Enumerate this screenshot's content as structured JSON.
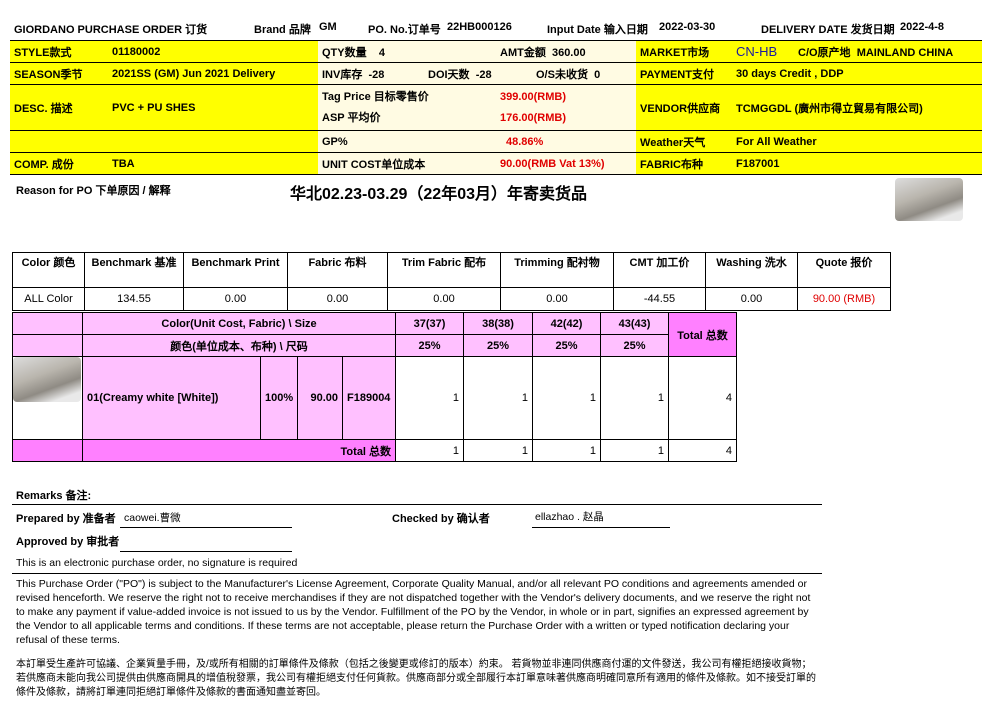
{
  "header": {
    "title": "GIORDANO PURCHASE ORDER 订货",
    "brand_label": "Brand 品牌",
    "brand": "GM",
    "po_label": "PO. No.订单号",
    "po": "22HB000126",
    "input_label": "Input Date 输入日期",
    "input_date": "2022-03-30",
    "delivery_label": "DELIVERY DATE 发货日期",
    "delivery_date": "2022-4-8"
  },
  "info": {
    "style_label": "STYLE款式",
    "style": "01180002",
    "season_label": "SEASON季节",
    "season": "2021SS (GM) Jun 2021 Delivery",
    "desc_label": "DESC. 描述",
    "desc": "PVC + PU SHES",
    "comp_label": "COMP. 成份",
    "comp": "TBA",
    "qty_label": "QTY数量",
    "qty": "4",
    "amt_label": "AMT金额",
    "amt": "360.00",
    "inv_label": "INV库存",
    "inv": "-28",
    "doi_label": "DOI天数",
    "doi": "-28",
    "os_label": "O/S未收货",
    "os": "0",
    "tag_label": "Tag Price 目标零售价",
    "tag": "399.00(RMB)",
    "asp_label": "ASP 平均价",
    "asp": "176.00(RMB)",
    "gp_label": "GP%",
    "gp": "48.86%",
    "unit_label": "UNIT COST单位成本",
    "unit": "90.00(RMB Vat 13%)",
    "market_label": "MARKET市场",
    "market": "CN-HB",
    "co_label": "C/O原产地",
    "co": "MAINLAND CHINA",
    "payment_label": "PAYMENT支付",
    "payment": "30 days Credit , DDP",
    "vendor_label": "VENDOR供应商",
    "vendor": "TCMGGDL (廣州市得立貿易有限公司)",
    "weather_label": "Weather天气",
    "weather": "For All Weather",
    "fabric_label": "FABRIC布种",
    "fabric": "F187001"
  },
  "reason": {
    "label": "Reason for PO 下单原因 / 解释",
    "text": "华北02.23-03.29（22年03月）年寄卖货品"
  },
  "benchmark": {
    "headers": [
      "Color 颜色",
      "Benchmark 基准",
      "Benchmark Print",
      "Fabric 布料",
      "Trim Fabric 配布",
      "Trimming 配衬物",
      "CMT 加工价",
      "Washing 洗水",
      "Quote 报价"
    ],
    "values": [
      "ALL Color",
      "134.55",
      "0.00",
      "0.00",
      "0.00",
      "0.00",
      "-44.55",
      "0.00",
      "90.00 (RMB)"
    ]
  },
  "sizes": {
    "header_en": "Color(Unit Cost, Fabric) \\ Size",
    "header_cn": "颜色(单位成本、布种) \\ 尺码",
    "total_label": "Total 总数",
    "sizes": [
      {
        "name": "37(37)",
        "ratio": "25%"
      },
      {
        "name": "38(38)",
        "ratio": "25%"
      },
      {
        "name": "42(42)",
        "ratio": "25%"
      },
      {
        "name": "43(43)",
        "ratio": "25%"
      }
    ],
    "row": {
      "color": "01(Creamy white [White])",
      "pct": "100%",
      "cost": "90.00",
      "fabric": "F189004",
      "qty": [
        "1",
        "1",
        "1",
        "1"
      ],
      "total": "4"
    },
    "totals": {
      "label": "Total 总数",
      "qty": [
        "1",
        "1",
        "1",
        "1"
      ],
      "total": "4"
    }
  },
  "signoff": {
    "remarks_label": "Remarks 备注:",
    "prepared_label": "Prepared by 准备者",
    "prepared": "caowei.曹微",
    "checked_label": "Checked by 确认者",
    "checked": "ellazhao . 赵晶",
    "approved_label": "Approved by 审批者",
    "electronic": "This is an electronic purchase order, no signature is required"
  },
  "terms": {
    "en": "This Purchase Order (\"PO\") is subject to the Manufacturer's License Agreement, Corporate Quality Manual, and/or all relevant PO conditions and agreements amended or revised henceforth. We reserve the right not to receive merchandises if they are not dispatched together with the Vendor's delivery documents, and we reserve the right not to make any payment if value-added invoice is not issued to us by the Vendor. Fulfillment of the PO by the Vendor, in whole or in part, signifies an expressed agreement by the Vendor to all applicable terms and conditions. If these terms are not acceptable, please return the Purchase Order with a written or typed notification declaring your refusal of these terms.",
    "cn": "本訂單受生產許可協議、企業質量手冊，及/或所有相關的訂單條件及條款（包括之後變更或修訂的版本）約束。 若貨物並非連同供應商付運的文件發送，我公司有權拒絕接收貨物；若供應商未能向我公司提供由供應商開具的增值稅發票，我公司有權拒絕支付任何貨款。供應商部分或全部履行本訂單意味著供應商明確同意所有適用的條件及條款。如不接受訂單的條件及條款，請將訂單連同拒絕訂單條件及條款的書面通知盡並寄回。"
  },
  "colors": {
    "yellow": "#ffff00",
    "cream": "#fffbe3",
    "pink_light": "#ffc0ff",
    "pink_dark": "#ff80ff",
    "red": "#e00000",
    "market_blue": "#1a1aa0"
  }
}
